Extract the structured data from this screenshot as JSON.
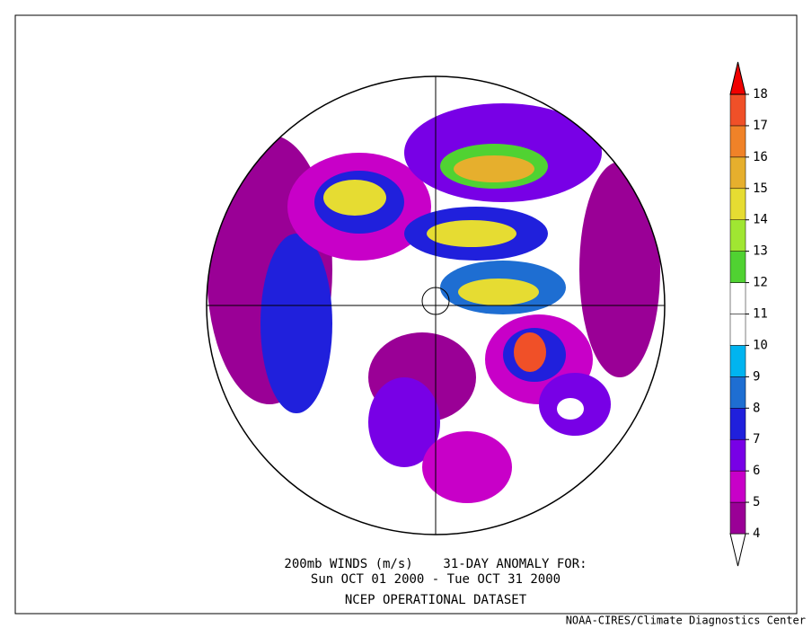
{
  "header": {
    "lines": [
      "200mb WINDS (m/s)    31-DAY ANOMALY FOR:",
      "Sun OCT 01 2000 - Tue OCT 31 2000",
      "NCEP OPERATIONAL DATASET"
    ]
  },
  "colorbar": {
    "levels": [
      4,
      5,
      6,
      7,
      8,
      9,
      10,
      11,
      12,
      13,
      14,
      15,
      16,
      17,
      18
    ],
    "colors": [
      "#ffffff",
      "#9a0096",
      "#c800c8",
      "#7800e6",
      "#2020dc",
      "#1e6ed2",
      "#00b4f0",
      "#ffffff",
      "#ffffff",
      "#50d232",
      "#a0e632",
      "#e6dc32",
      "#e6af2d",
      "#f08228",
      "#f05028",
      "#f00000"
    ]
  },
  "credit": "NOAA-CIRES/Climate Diagnostics Center"
}
